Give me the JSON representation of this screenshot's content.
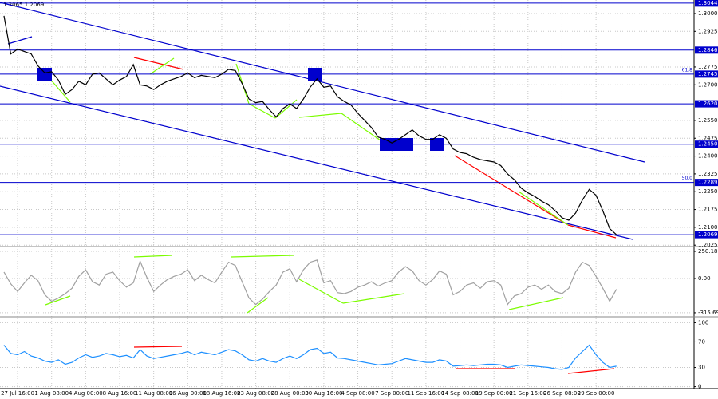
{
  "chart_data": [
    {
      "type": "line",
      "title": "1.2065 1.2069",
      "categories": [
        null,
        null,
        "27 Jul 16:00",
        null,
        null,
        null,
        null,
        "1 Aug 08:00",
        null,
        null,
        null,
        null,
        "4 Aug 00:00",
        null,
        null,
        null,
        null,
        "8 Aug 16:00",
        null,
        null,
        null,
        null,
        "11 Aug 08:00",
        null,
        null,
        null,
        null,
        "16 Aug 00:00",
        null,
        null,
        null,
        null,
        "18 Aug 16:00",
        null,
        null,
        null,
        null,
        "23 Aug 08:00",
        null,
        null,
        null,
        null,
        "28 Aug 00:00",
        null,
        null,
        null,
        null,
        "30 Aug 16:00",
        null,
        null,
        null,
        null,
        "4 Sep 08:00",
        null,
        null,
        null,
        null,
        "7 Sep 00:00",
        null,
        null,
        null,
        null,
        "11 Sep 16:00",
        null,
        null,
        null,
        null,
        "14 Sep 08:00",
        null,
        null,
        null,
        null,
        "19 Sep 00:00",
        null,
        null,
        null,
        null,
        "21 Sep 16:00",
        null,
        null,
        null,
        null,
        "26 Sep 08:00",
        null,
        null,
        null,
        null,
        "29 Sep 00:00",
        null,
        null,
        null
      ],
      "series": [
        {
          "color": "#000000",
          "values": [
            1.299,
            1.283,
            1.285,
            1.284,
            1.283,
            1.278,
            1.275,
            1.2755,
            1.272,
            1.266,
            1.268,
            1.2715,
            1.27,
            1.2745,
            1.275,
            1.2725,
            1.27,
            1.272,
            1.2735,
            1.2785,
            1.27,
            1.2695,
            1.268,
            1.27,
            1.2715,
            1.2725,
            1.2735,
            1.275,
            1.273,
            1.274,
            1.2735,
            1.273,
            1.2745,
            1.2765,
            1.276,
            1.2705,
            1.264,
            1.2625,
            1.263,
            1.2595,
            1.2565,
            1.26,
            1.262,
            1.26,
            1.264,
            1.269,
            1.2725,
            1.269,
            1.2695,
            1.265,
            1.263,
            1.2615,
            1.258,
            1.255,
            1.252,
            1.248,
            1.247,
            1.2455,
            1.247,
            1.249,
            1.251,
            1.2485,
            1.247,
            1.247,
            1.249,
            1.2475,
            1.243,
            1.2415,
            1.241,
            1.2395,
            1.2385,
            1.238,
            1.2375,
            1.236,
            1.2325,
            1.23,
            1.2265,
            1.2245,
            1.223,
            1.221,
            1.2195,
            1.217,
            1.214,
            1.213,
            1.216,
            1.2215,
            1.226,
            1.2235,
            1.217,
            1.2095,
            1.2069
          ]
        }
      ],
      "ylim": [
        1.2019,
        1.3057
      ],
      "yticks": [
        {
          "value": 1.3,
          "label": "1.3000"
        },
        {
          "value": 1.2925,
          "label": "1.2925"
        },
        {
          "value": 1.2775,
          "label": "1.2775"
        },
        {
          "value": 1.27,
          "label": "1.2700"
        },
        {
          "value": 1.255,
          "label": "1.2550"
        },
        {
          "value": 1.2475,
          "label": "1.2475"
        },
        {
          "value": 1.24,
          "label": "1.2400"
        },
        {
          "value": 1.2325,
          "label": "1.2325"
        },
        {
          "value": 1.225,
          "label": "1.2250"
        },
        {
          "value": 1.2175,
          "label": "1.2175"
        },
        {
          "value": 1.21,
          "label": "1.2100"
        },
        {
          "value": 1.2025,
          "label": "1.2025"
        }
      ],
      "levels": [
        1.3044,
        1.2846,
        1.2745,
        {
          "value": 1.262,
          "label": "1.2620"
        },
        {
          "value": 1.245,
          "label": "1.2450"
        },
        1.2289,
        1.2069
      ],
      "level_color": "#0000cd",
      "fibonacci": [
        {
          "value": 1.2745,
          "label": "61.8"
        },
        {
          "value": 1.2289,
          "label": "50.0"
        }
      ],
      "grid": true
    },
    {
      "type": "line",
      "series": [
        {
          "color": "#a0a0a0",
          "values": [
            60,
            -50,
            -120,
            -40,
            30,
            -20,
            -150,
            -210,
            -180,
            -140,
            -90,
            20,
            80,
            -30,
            -60,
            40,
            60,
            -20,
            -80,
            -40,
            160,
            10,
            -120,
            -60,
            -10,
            20,
            40,
            80,
            -20,
            30,
            -10,
            -40,
            60,
            150,
            120,
            -30,
            -180,
            -240,
            -190,
            -120,
            -60,
            60,
            90,
            -30,
            80,
            150,
            170,
            -40,
            -20,
            -130,
            -140,
            -120,
            -80,
            -60,
            -30,
            -70,
            -40,
            -20,
            60,
            110,
            70,
            -20,
            -60,
            -10,
            70,
            40,
            -150,
            -120,
            -60,
            -40,
            -90,
            -30,
            -20,
            -60,
            -240,
            -160,
            -140,
            -80,
            -60,
            -100,
            -60,
            -120,
            -140,
            -90,
            60,
            150,
            120,
            20,
            -90,
            -210,
            -100
          ]
        }
      ],
      "ylim": [
        -353,
        287
      ],
      "yticks": [
        250.1868,
        {
          "value": 0,
          "label": "0.00"
        },
        -315.698
      ],
      "grid": true
    },
    {
      "type": "line",
      "series": [
        {
          "color": "#1e90ff",
          "values": [
            65,
            52,
            50,
            55,
            48,
            45,
            40,
            38,
            42,
            35,
            38,
            45,
            50,
            46,
            48,
            52,
            50,
            47,
            49,
            45,
            58,
            48,
            44,
            46,
            48,
            50,
            52,
            55,
            50,
            54,
            52,
            50,
            54,
            58,
            56,
            50,
            42,
            40,
            44,
            40,
            38,
            44,
            48,
            44,
            50,
            58,
            60,
            52,
            54,
            45,
            44,
            42,
            40,
            38,
            36,
            34,
            35,
            36,
            40,
            44,
            42,
            40,
            38,
            38,
            42,
            40,
            32,
            33,
            34,
            33,
            34,
            35,
            35,
            34,
            30,
            32,
            34,
            33,
            32,
            31,
            30,
            28,
            27,
            30,
            45,
            55,
            65,
            50,
            38,
            30,
            32
          ]
        }
      ],
      "ylim": [
        -3,
        108
      ],
      "yticks": [
        100,
        70,
        30,
        0
      ],
      "grid": true
    }
  ]
}
